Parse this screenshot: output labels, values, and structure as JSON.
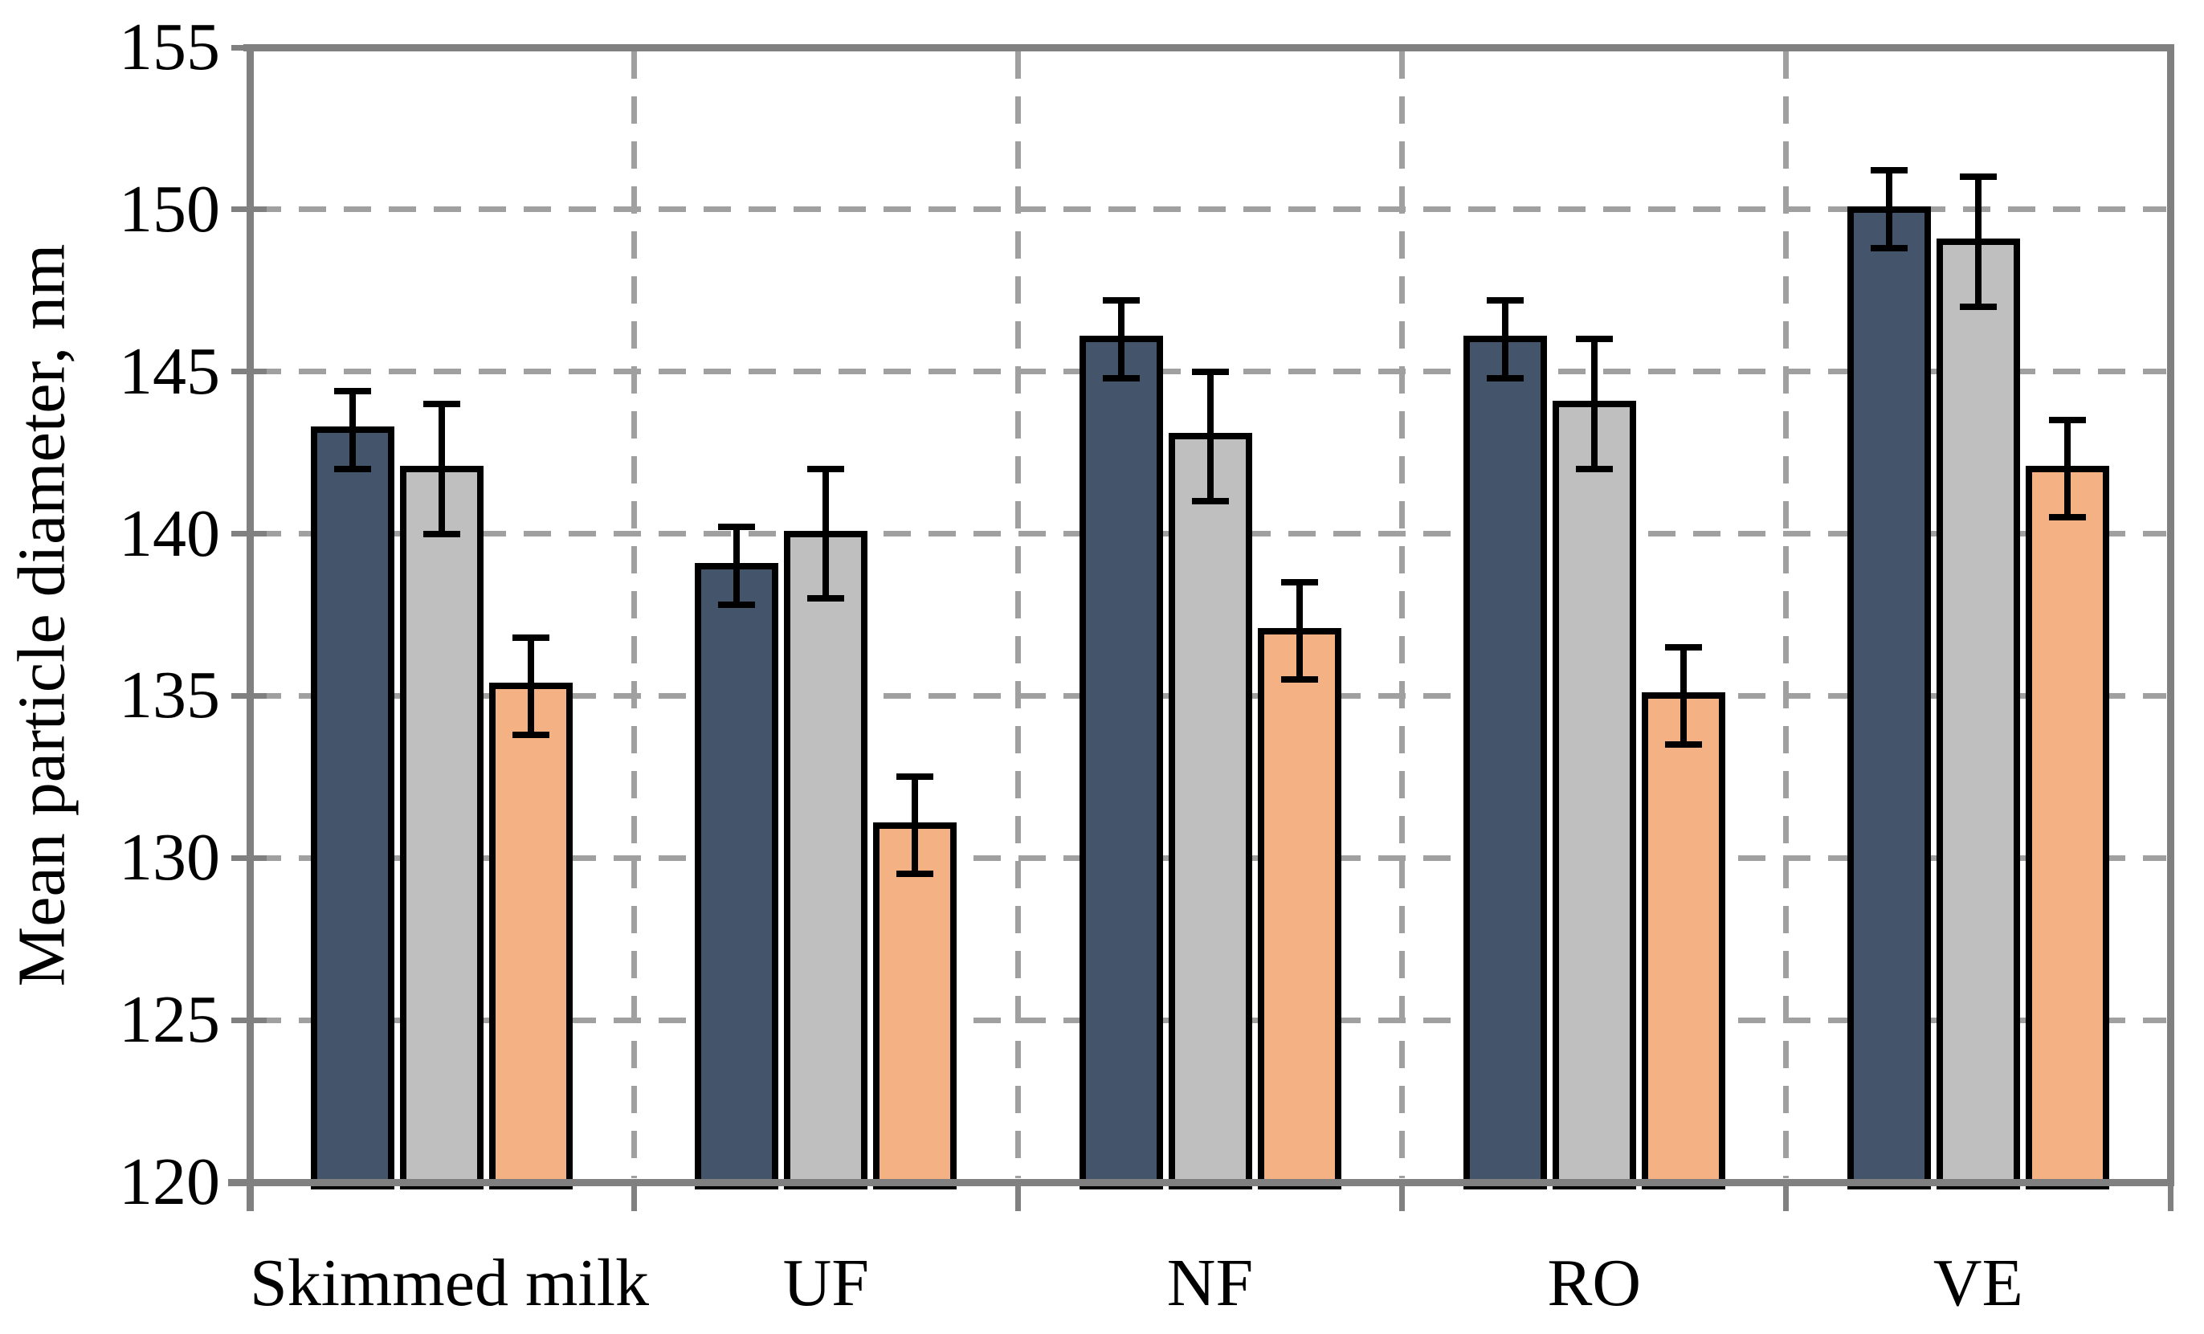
{
  "figure": {
    "background": "#FFFFFF"
  },
  "y_axis": {
    "title": "Mean particle diameter, nm",
    "tick_labels": [
      "155",
      "150",
      "145",
      "140",
      "135",
      "130",
      "125",
      "120"
    ]
  },
  "chart_data": {
    "type": "bar",
    "title": "",
    "categories": [
      "Skimmed milk",
      "UF",
      "NF",
      "RO",
      "VE"
    ],
    "series": [
      {
        "name": "dark-blue",
        "color": "#44546A",
        "values": [
          143.2,
          139,
          146,
          146,
          150
        ],
        "error_bars": [
          1.2,
          1.2,
          1.2,
          1.2,
          1.2
        ]
      },
      {
        "name": "light-gray",
        "color": "#BFBFBF",
        "values": [
          142,
          140,
          143,
          144,
          149
        ],
        "error_bars": [
          2,
          2,
          2,
          2,
          2
        ]
      },
      {
        "name": "orange",
        "color": "#F4B183",
        "values": [
          135.3,
          131,
          137,
          135,
          142
        ],
        "error_bars": [
          1.5,
          1.5,
          1.5,
          1.5,
          1.5
        ]
      }
    ],
    "xlabel": "",
    "ylabel": "Mean particle diameter, nm",
    "ylim": [
      120,
      155
    ],
    "ytick_step": 5,
    "grid": {
      "horizontal": "dashed",
      "vertical_category_separators": "dashed"
    },
    "legend": "none",
    "colors": {
      "axis_frame": "#808080",
      "gridline": "#A0A0A0",
      "bar_outline": "#000000",
      "error_bar": "#000000"
    }
  }
}
